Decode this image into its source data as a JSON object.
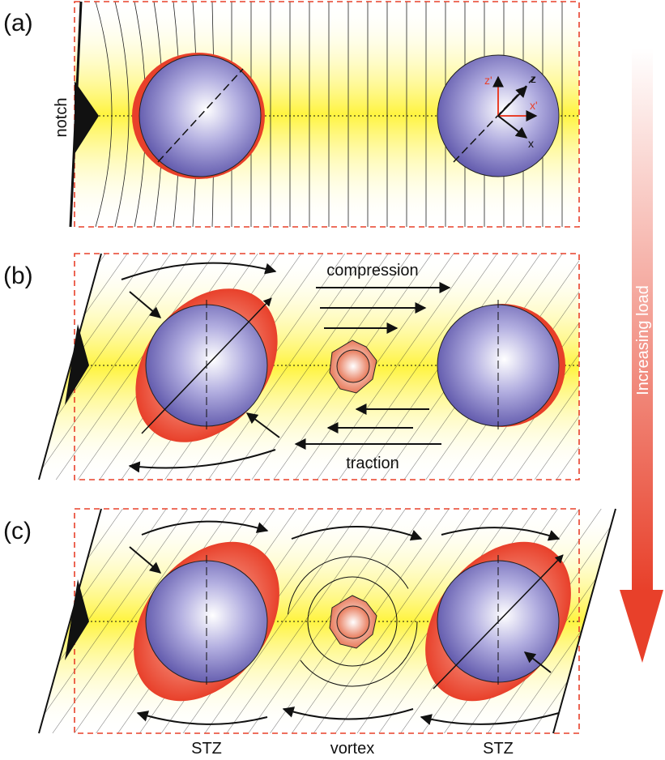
{
  "panels": [
    {
      "label": "(a)",
      "notch": "notch",
      "axes": {
        "z_prime": "z'",
        "x_prime": "x'",
        "z": "z",
        "x": "x"
      }
    },
    {
      "label": "(b)",
      "top": "compression",
      "bottom": "traction"
    },
    {
      "label": "(c)",
      "bottom_labels": [
        "STZ",
        "vortex",
        "STZ"
      ]
    }
  ],
  "arrow_label": "Increasing load"
}
